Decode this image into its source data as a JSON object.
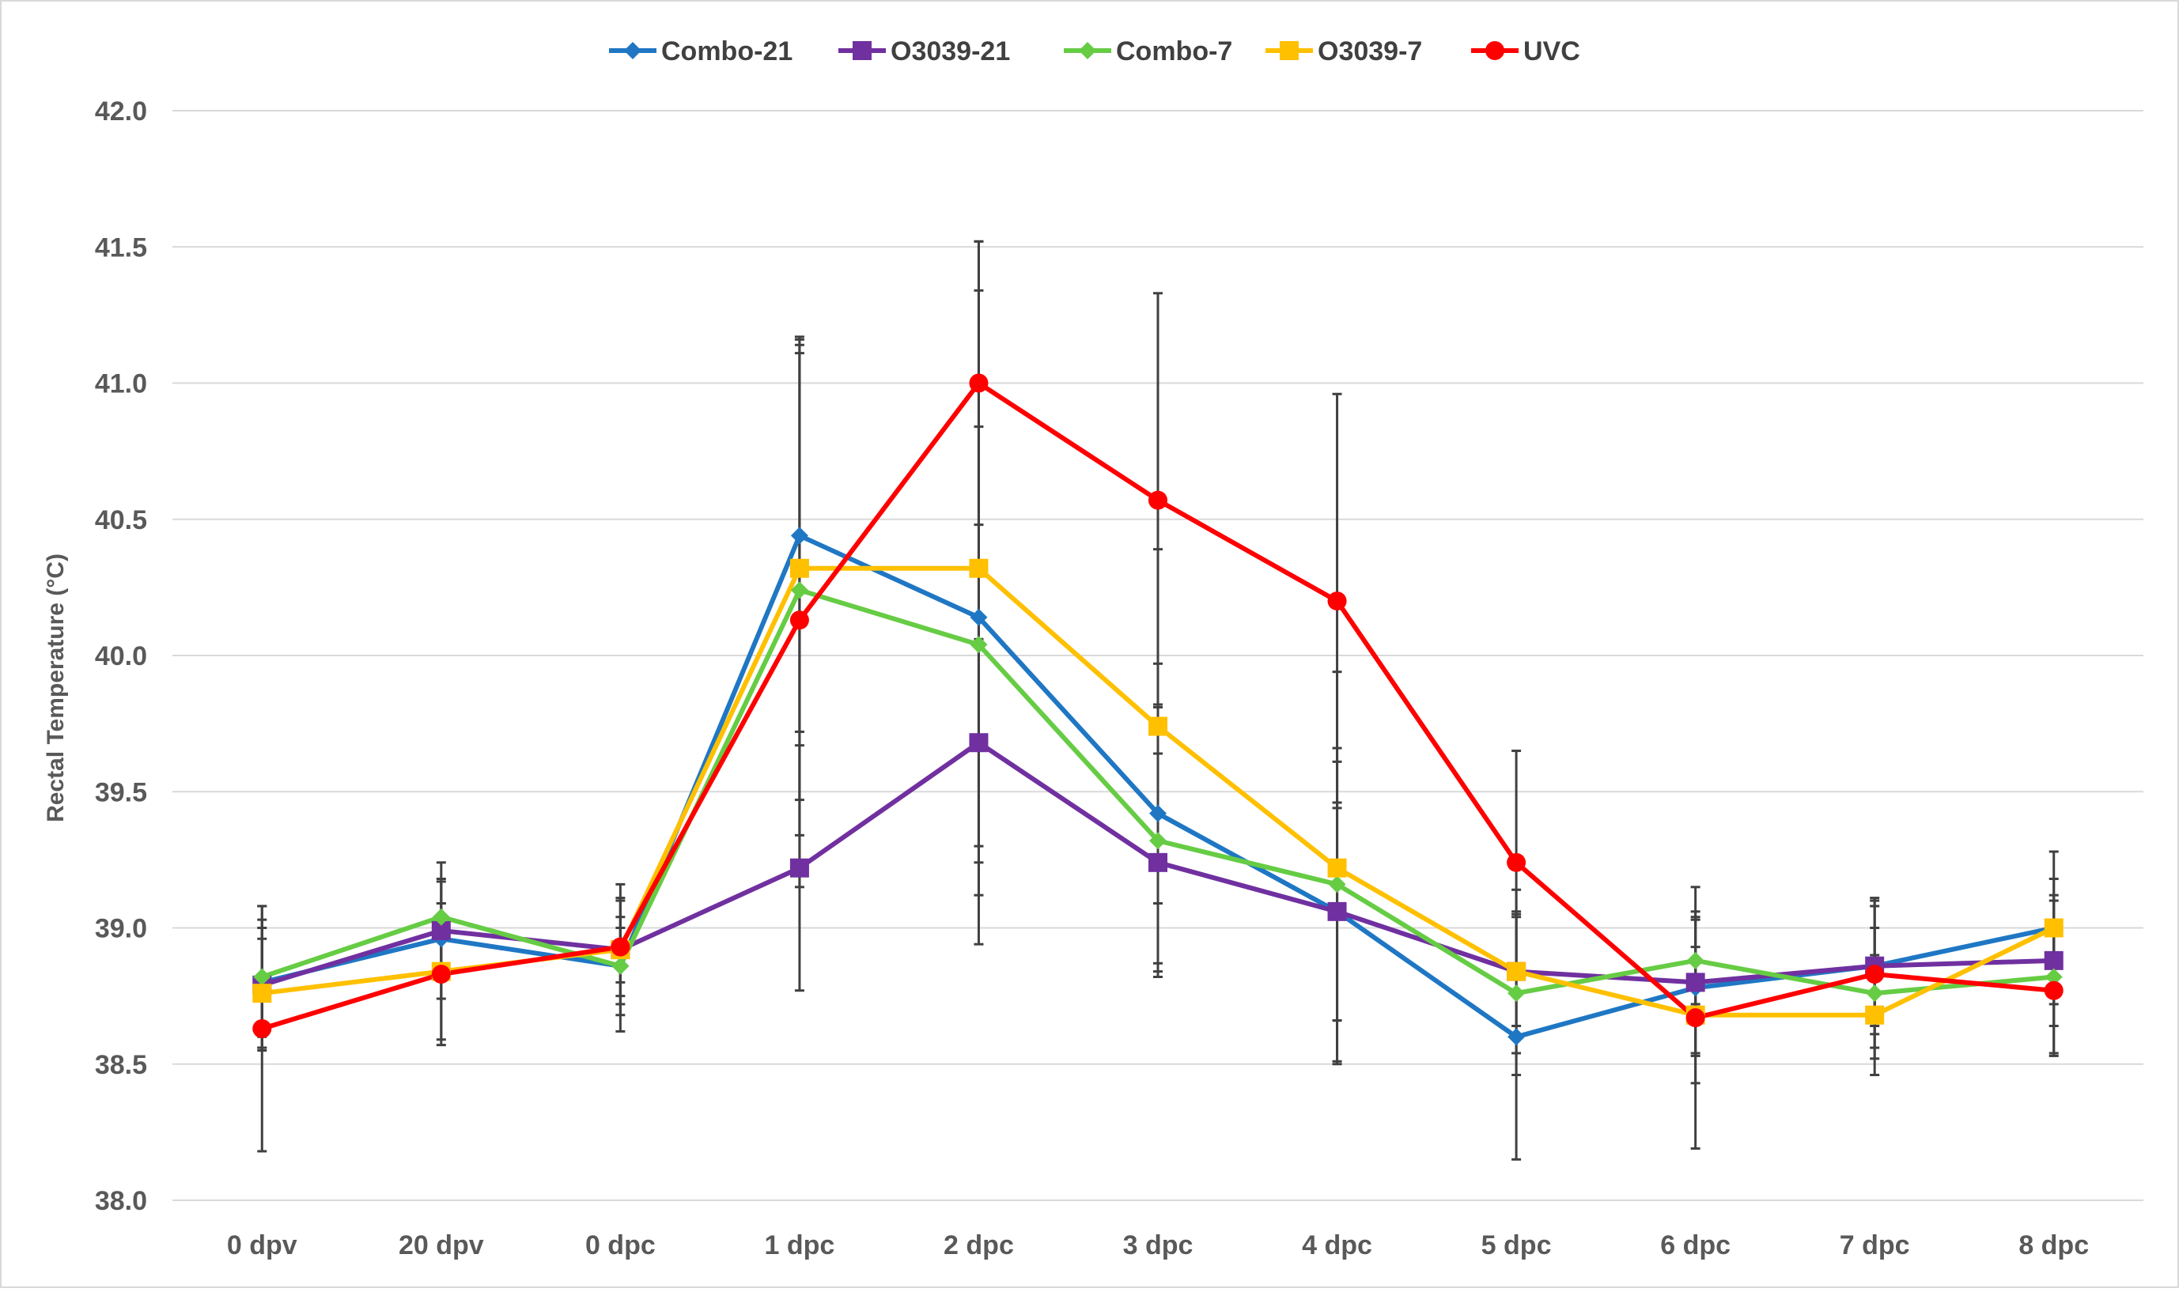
{
  "chart_data": {
    "type": "line",
    "title": "",
    "xlabel": "",
    "ylabel": "Rectal Temperature (°C)",
    "ylim": [
      38.0,
      42.0
    ],
    "ytick_values": [
      38.0,
      38.5,
      39.0,
      39.5,
      40.0,
      40.5,
      41.0,
      41.5,
      42.0
    ],
    "ytick_labels": [
      "38.0",
      "38.5",
      "39.0",
      "39.5",
      "40.0",
      "40.5",
      "41.0",
      "41.5",
      "42.0"
    ],
    "grid": true,
    "legend_position": "top",
    "categories": [
      "0 dpv",
      "20 dpv",
      "0 dpc",
      "1 dpc",
      "2 dpc",
      "3 dpc",
      "4 dpc",
      "5 dpc",
      "6 dpc",
      "7 dpc",
      "8 dpc"
    ],
    "series": [
      {
        "name": "Combo-21",
        "color": "#1f77c4",
        "marker": "diamond",
        "values": [
          38.8,
          38.96,
          38.86,
          40.44,
          40.14,
          39.42,
          39.06,
          38.6,
          38.78,
          38.86,
          39.0
        ],
        "errors": [
          0.2,
          0.22,
          0.14,
          0.72,
          1.2,
          0.55,
          0.55,
          0.45,
          0.25,
          0.22,
          0.28
        ]
      },
      {
        "name": "O3039-21",
        "color": "#7030a0",
        "marker": "square",
        "values": [
          38.79,
          38.99,
          38.92,
          39.22,
          39.68,
          39.24,
          39.06,
          38.84,
          38.8,
          38.86,
          38.88
        ],
        "errors": [
          0.24,
          0.18,
          0.12,
          0.45,
          0.38,
          0.4,
          0.4,
          0.2,
          0.26,
          0.25,
          0.24
        ]
      },
      {
        "name": "Combo-7",
        "color": "#66cc44",
        "marker": "diamond",
        "values": [
          38.82,
          39.04,
          38.86,
          40.24,
          40.04,
          39.32,
          39.16,
          38.76,
          38.88,
          38.76,
          38.82
        ],
        "errors": [
          0.26,
          0.2,
          0.24,
          0.9,
          0.8,
          0.5,
          0.5,
          0.3,
          0.16,
          0.24,
          0.28
        ]
      },
      {
        "name": "O3039-7",
        "color": "#ffc000",
        "marker": "square",
        "values": [
          38.76,
          38.84,
          38.92,
          40.32,
          40.32,
          39.74,
          39.22,
          38.84,
          38.68,
          38.68,
          39.0
        ],
        "errors": [
          0.2,
          0.25,
          0.24,
          0.85,
          1.2,
          0.65,
          0.72,
          0.3,
          0.25,
          0.22,
          0.18
        ]
      },
      {
        "name": "UVC",
        "color": "#ff0000",
        "marker": "circle",
        "values": [
          38.63,
          38.83,
          38.93,
          40.13,
          41.0,
          40.57,
          40.2,
          39.24,
          38.67,
          38.83,
          38.77
        ],
        "errors": [
          0.45,
          0.26,
          0.18,
          0.98,
          0.52,
          0.76,
          0.76,
          0.41,
          0.48,
          0.27,
          0.24
        ]
      }
    ]
  }
}
